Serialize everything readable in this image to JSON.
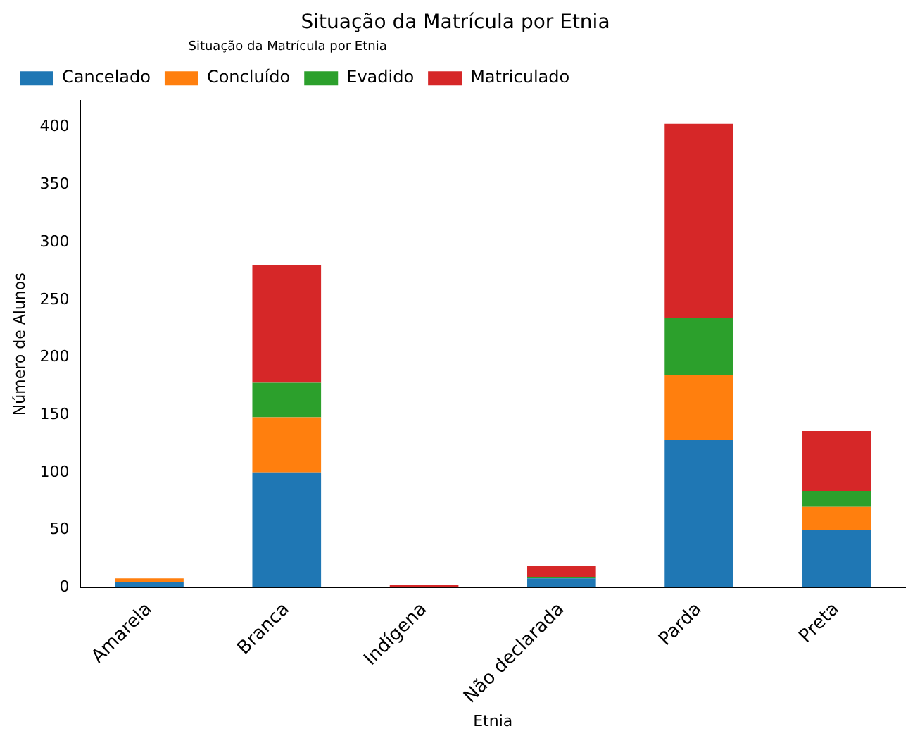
{
  "chart_data": {
    "type": "bar",
    "title": "Situação da Matrícula por Etnia",
    "xlabel": "Etnia",
    "ylabel": "Número de Alunos",
    "legend_title": "Situação da Matrícula por Etnia",
    "categories": [
      "Amarela",
      "Branca",
      "Indígena",
      "Não declarada",
      "Parda",
      "Preta"
    ],
    "series": [
      {
        "name": "Cancelado",
        "color": "#1f77b4",
        "values": [
          5,
          100,
          0,
          8,
          128,
          50
        ]
      },
      {
        "name": "Concluído",
        "color": "#ff7f0e",
        "values": [
          3,
          48,
          0,
          0,
          57,
          20
        ]
      },
      {
        "name": "Evadido",
        "color": "#2ca02c",
        "values": [
          0,
          30,
          0,
          1,
          49,
          14
        ]
      },
      {
        "name": "Matriculado",
        "color": "#d62728",
        "values": [
          0,
          102,
          2,
          10,
          169,
          52
        ]
      }
    ],
    "stacked": true,
    "ylim": [
      0,
      423
    ],
    "yticks": [
      0,
      50,
      100,
      150,
      200,
      250,
      300,
      350,
      400
    ],
    "grid": false,
    "legend": "top left"
  }
}
